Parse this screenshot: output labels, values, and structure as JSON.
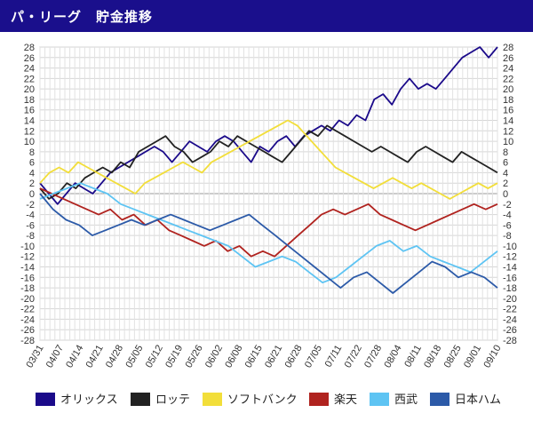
{
  "header": {
    "title": "パ・リーグ　貯金推移"
  },
  "chart_data": {
    "type": "line",
    "ylim": [
      -28,
      28
    ],
    "y_ticks": [
      28,
      26,
      24,
      22,
      20,
      18,
      16,
      14,
      12,
      10,
      8,
      6,
      4,
      2,
      0,
      -2,
      -4,
      -6,
      -8,
      -10,
      -12,
      -14,
      -16,
      -18,
      -20,
      -22,
      -24,
      -26,
      -28
    ],
    "x_tick_labels": [
      "03/31",
      "04/07",
      "04/14",
      "04/21",
      "04/28",
      "05/05",
      "05/12",
      "05/19",
      "05/26",
      "06/02",
      "06/08",
      "06/15",
      "06/21",
      "06/28",
      "07/05",
      "07/11",
      "07/22",
      "07/28",
      "08/04",
      "08/11",
      "08/18",
      "08/25",
      "09/01",
      "09/10"
    ],
    "grid": true,
    "legend_position": "bottom",
    "series": [
      {
        "name": "オリックス",
        "color": "#1b0a8a",
        "values": [
          2,
          0,
          -2,
          0,
          2,
          1,
          0,
          2,
          4,
          5,
          6,
          7,
          8,
          9,
          8,
          6,
          8,
          10,
          9,
          8,
          10,
          11,
          10,
          8,
          6,
          9,
          8,
          10,
          11,
          9,
          11,
          12,
          13,
          12,
          14,
          13,
          15,
          14,
          18,
          19,
          17,
          20,
          22,
          20,
          21,
          20,
          22,
          24,
          26,
          27,
          28,
          26,
          28
        ]
      },
      {
        "name": "ロッテ",
        "color": "#222222",
        "values": [
          1,
          -1,
          0,
          2,
          1,
          3,
          4,
          5,
          4,
          6,
          5,
          8,
          9,
          10,
          11,
          9,
          8,
          6,
          7,
          8,
          10,
          9,
          11,
          10,
          9,
          8,
          7,
          6,
          8,
          10,
          12,
          11,
          13,
          12,
          11,
          10,
          9,
          8,
          9,
          8,
          7,
          6,
          8,
          9,
          8,
          7,
          6,
          8,
          7,
          6,
          5,
          4
        ]
      },
      {
        "name": "ソフトバンク",
        "color": "#f2de3a",
        "values": [
          2,
          4,
          5,
          4,
          6,
          5,
          4,
          3,
          2,
          1,
          0,
          2,
          3,
          4,
          5,
          6,
          5,
          4,
          6,
          7,
          8,
          9,
          10,
          11,
          12,
          13,
          14,
          13,
          11,
          9,
          7,
          5,
          4,
          3,
          2,
          1,
          2,
          3,
          2,
          1,
          2,
          1,
          0,
          -1,
          0,
          1,
          2,
          1,
          2
        ]
      },
      {
        "name": "楽天",
        "color": "#b0231f",
        "values": [
          1,
          0,
          -1,
          -2,
          -3,
          -4,
          -3,
          -5,
          -4,
          -6,
          -5,
          -7,
          -8,
          -9,
          -10,
          -9,
          -11,
          -10,
          -12,
          -11,
          -12,
          -10,
          -8,
          -6,
          -4,
          -3,
          -4,
          -3,
          -2,
          -4,
          -5,
          -6,
          -7,
          -6,
          -5,
          -4,
          -3,
          -2,
          -3,
          -2
        ]
      },
      {
        "name": "西武",
        "color": "#5ec4f3",
        "values": [
          -1,
          0,
          1,
          2,
          1,
          0,
          -2,
          -3,
          -4,
          -5,
          -6,
          -7,
          -8,
          -9,
          -10,
          -12,
          -14,
          -13,
          -12,
          -13,
          -15,
          -17,
          -16,
          -14,
          -12,
          -10,
          -9,
          -11,
          -10,
          -12,
          -13,
          -14,
          -15,
          -13,
          -11
        ]
      },
      {
        "name": "日本ハム",
        "color": "#2c5aa8",
        "values": [
          0,
          -3,
          -5,
          -6,
          -8,
          -7,
          -6,
          -5,
          -6,
          -5,
          -4,
          -5,
          -6,
          -7,
          -6,
          -5,
          -4,
          -6,
          -8,
          -10,
          -12,
          -14,
          -16,
          -18,
          -16,
          -15,
          -17,
          -19,
          -17,
          -15,
          -13,
          -14,
          -16,
          -15,
          -16,
          -18
        ]
      }
    ]
  }
}
